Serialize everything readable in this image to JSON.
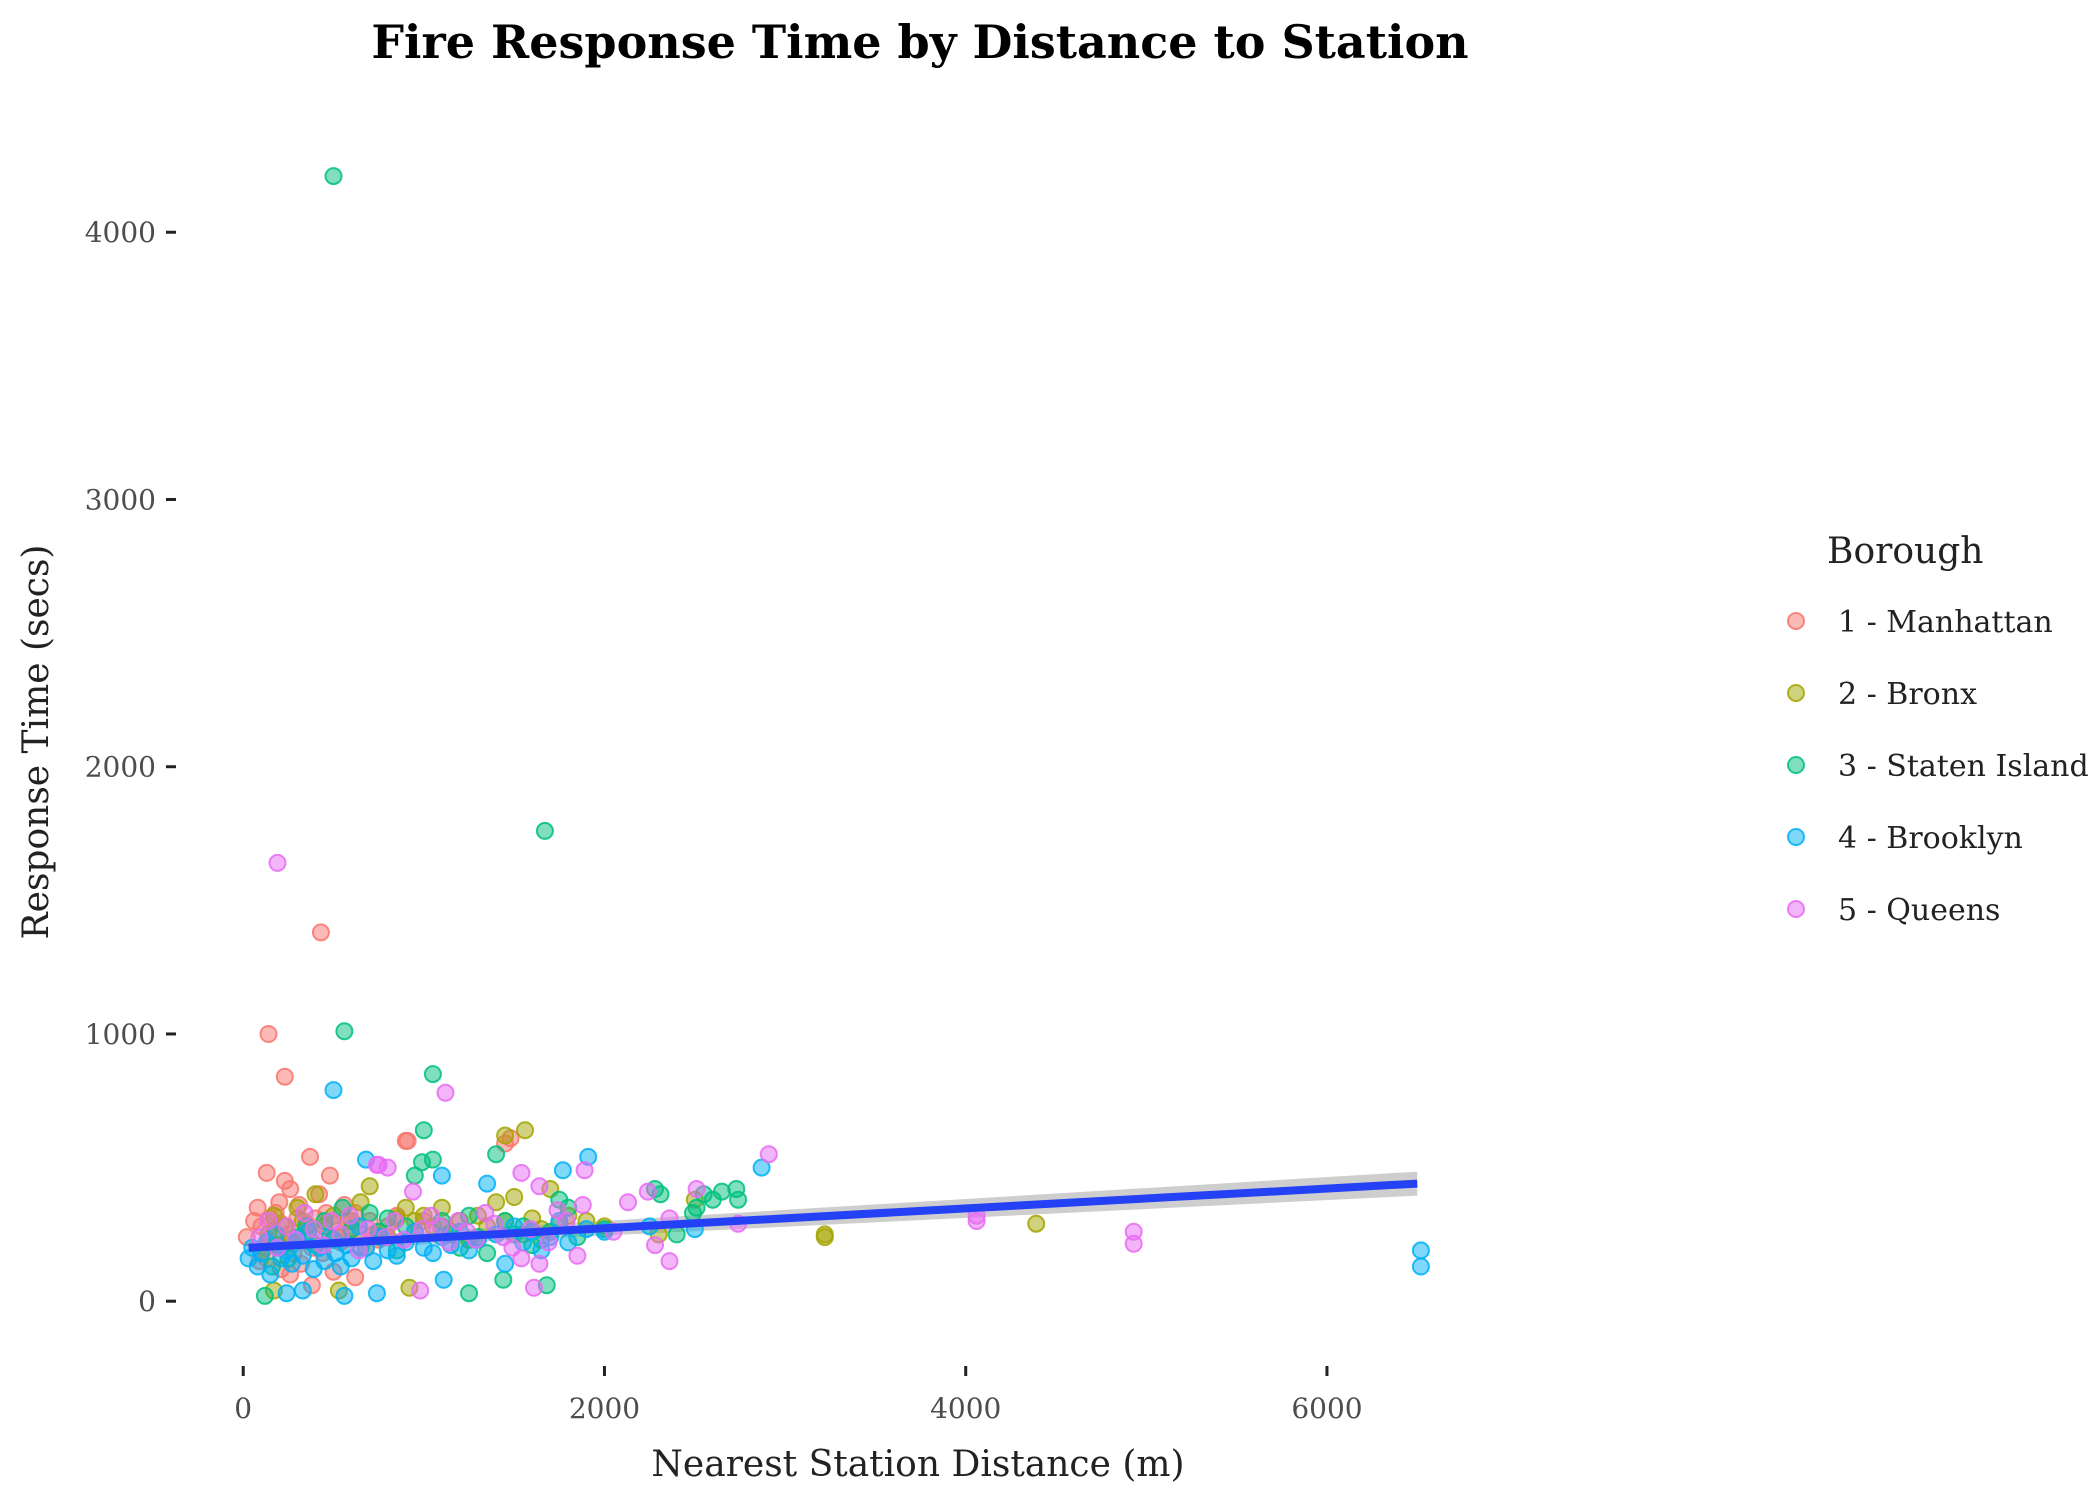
{
  "chart_data": {
    "type": "scatter",
    "title": "Fire Response Time by Distance to Station",
    "xlabel": "Nearest Station Distance (m)",
    "ylabel": "Response Time (secs)",
    "xlim": [
      -350,
      7650
    ],
    "ylim": [
      -220,
      4420
    ],
    "x_ticks": [
      0,
      2000,
      4000,
      6000
    ],
    "y_ticks": [
      0,
      1000,
      2000,
      3000,
      4000
    ],
    "grid": false,
    "legend": {
      "title": "Borough",
      "position": "right",
      "entries": [
        "1 - Manhattan",
        "2 - Bronx",
        "3 - Staten Island",
        "4 - Brooklyn",
        "5 - Queens"
      ]
    },
    "colors": {
      "1 - Manhattan": "#F8766D",
      "2 - Bronx": "#A3A500",
      "3 - Staten Island": "#00BF7D",
      "4 - Brooklyn": "#00B0F6",
      "5 - Queens": "#E76BF3",
      "trend": "#2541F5",
      "band": "#BEBEBE"
    },
    "trend_line": {
      "type": "linear",
      "x": [
        30,
        6500
      ],
      "y": [
        200,
        440
      ],
      "ci_lower": [
        180,
        395
      ],
      "ci_upper": [
        220,
        485
      ]
    },
    "series": [
      {
        "name": "1 - Manhattan",
        "x": [
          20,
          60,
          80,
          100,
          120,
          130,
          150,
          170,
          180,
          200,
          210,
          230,
          250,
          260,
          280,
          300,
          310,
          330,
          350,
          370,
          380,
          400,
          420,
          430,
          440,
          460,
          480,
          500,
          520,
          540,
          560,
          580,
          600,
          620,
          650,
          680,
          700,
          720,
          750,
          800,
          850,
          900,
          950,
          1000,
          1100,
          1250,
          1450,
          1480,
          140,
          230,
          430,
          910,
          380,
          130,
          210,
          260,
          320,
          140,
          90,
          620,
          250,
          500
        ],
        "y": [
          240,
          300,
          350,
          280,
          200,
          480,
          310,
          260,
          330,
          370,
          290,
          450,
          250,
          420,
          180,
          310,
          360,
          240,
          290,
          540,
          200,
          310,
          400,
          260,
          180,
          330,
          470,
          290,
          240,
          220,
          360,
          300,
          270,
          330,
          250,
          200,
          300,
          250,
          230,
          280,
          320,
          600,
          260,
          300,
          280,
          230,
          590,
          610,
          1000,
          840,
          1380,
          600,
          60,
          160,
          120,
          100,
          140,
          230,
          150,
          90,
          220,
          110
        ]
      },
      {
        "name": "2 - Bronx",
        "x": [
          100,
          140,
          170,
          200,
          230,
          260,
          300,
          330,
          360,
          400,
          450,
          500,
          550,
          600,
          650,
          700,
          750,
          800,
          850,
          900,
          950,
          1000,
          1050,
          1100,
          1150,
          1200,
          1250,
          1300,
          1350,
          1400,
          1450,
          1500,
          1550,
          1600,
          1650,
          1700,
          1750,
          1800,
          1900,
          2000,
          2300,
          2500,
          3220,
          3220,
          4390,
          1450,
          1560,
          920,
          530,
          170
        ],
        "y": [
          180,
          250,
          320,
          210,
          280,
          230,
          350,
          300,
          260,
          400,
          280,
          320,
          240,
          300,
          370,
          430,
          260,
          240,
          310,
          350,
          300,
          320,
          280,
          350,
          260,
          300,
          230,
          320,
          280,
          370,
          300,
          390,
          250,
          310,
          270,
          420,
          290,
          320,
          300,
          280,
          250,
          380,
          240,
          250,
          290,
          620,
          640,
          50,
          40,
          40
        ]
      },
      {
        "name": "3 - Staten Island",
        "x": [
          120,
          160,
          200,
          250,
          300,
          350,
          400,
          450,
          500,
          550,
          600,
          650,
          700,
          750,
          800,
          850,
          900,
          950,
          1000,
          1050,
          1100,
          1150,
          1200,
          1250,
          1300,
          1350,
          1400,
          1450,
          1500,
          1550,
          1600,
          1650,
          1700,
          1750,
          1800,
          1850,
          2000,
          2280,
          2310,
          2400,
          2490,
          2510,
          2550,
          2600,
          2650,
          2730,
          2740,
          500,
          1670,
          560,
          1050,
          990,
          1680,
          1250,
          1440
        ],
        "y": [
          20,
          130,
          200,
          160,
          240,
          280,
          210,
          300,
          230,
          350,
          270,
          200,
          330,
          260,
          310,
          190,
          280,
          470,
          640,
          530,
          300,
          250,
          200,
          320,
          240,
          180,
          550,
          300,
          250,
          280,
          210,
          230,
          260,
          380,
          350,
          240,
          270,
          420,
          400,
          250,
          330,
          350,
          400,
          380,
          410,
          420,
          380,
          4210,
          1760,
          1010,
          850,
          520,
          60,
          30,
          80
        ]
      },
      {
        "name": "4 - Brooklyn",
        "x": [
          30,
          50,
          80,
          100,
          130,
          150,
          180,
          210,
          240,
          270,
          300,
          330,
          360,
          390,
          420,
          450,
          480,
          510,
          540,
          570,
          600,
          640,
          680,
          720,
          760,
          800,
          850,
          900,
          950,
          1000,
          1050,
          1100,
          1150,
          1200,
          1250,
          1300,
          1350,
          1400,
          1450,
          1500,
          1550,
          1600,
          1650,
          1700,
          1750,
          1800,
          1900,
          2000,
          2250,
          2500,
          2870,
          6520,
          6520,
          500,
          680,
          1100,
          1910,
          1770,
          560,
          240,
          330,
          740,
          1110
        ],
        "y": [
          160,
          200,
          130,
          180,
          220,
          100,
          250,
          160,
          190,
          140,
          230,
          170,
          260,
          120,
          200,
          150,
          240,
          180,
          130,
          210,
          160,
          280,
          200,
          150,
          240,
          190,
          170,
          220,
          260,
          200,
          180,
          240,
          210,
          260,
          190,
          230,
          440,
          250,
          140,
          280,
          220,
          260,
          190,
          240,
          300,
          220,
          270,
          260,
          280,
          270,
          500,
          190,
          130,
          790,
          530,
          470,
          540,
          490,
          20,
          30,
          40,
          30,
          80
        ]
      },
      {
        "name": "5 - Queens",
        "x": [
          90,
          140,
          190,
          240,
          290,
          340,
          390,
          440,
          490,
          540,
          590,
          640,
          690,
          740,
          790,
          840,
          890,
          940,
          990,
          1040,
          1090,
          1140,
          1190,
          1240,
          1290,
          1340,
          1390,
          1440,
          1490,
          1540,
          1590,
          1640,
          1690,
          1740,
          1790,
          1890,
          2050,
          2130,
          2240,
          2280,
          2360,
          2510,
          2740,
          2910,
          4060,
          4060,
          4930,
          4930,
          190,
          1120,
          750,
          800,
          1880,
          1640,
          1610,
          1540,
          980,
          2360,
          1850
        ],
        "y": [
          240,
          300,
          200,
          280,
          230,
          330,
          270,
          210,
          300,
          250,
          320,
          190,
          270,
          510,
          240,
          300,
          230,
          410,
          270,
          320,
          280,
          220,
          300,
          260,
          230,
          330,
          290,
          240,
          200,
          480,
          270,
          430,
          220,
          340,
          300,
          490,
          260,
          370,
          410,
          210,
          310,
          420,
          290,
          550,
          300,
          320,
          260,
          215,
          1640,
          780,
          510,
          500,
          360,
          140,
          50,
          160,
          40,
          150,
          170
        ]
      }
    ]
  }
}
